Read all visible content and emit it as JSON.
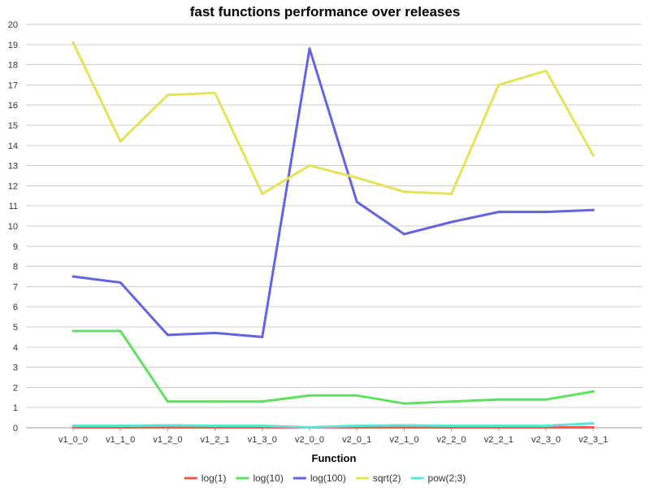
{
  "chart_data": {
    "type": "line",
    "title": "fast functions performance over releases",
    "xlabel": "Function",
    "ylabel": "",
    "ylim": [
      0,
      20
    ],
    "ytick_step": 1,
    "grid": true,
    "legend_position": "bottom",
    "categories": [
      "v1_0_0",
      "v1_1_0",
      "v1_2_0",
      "v1_2_1",
      "v1_3_0",
      "v2_0_0",
      "v2_0_1",
      "v2_1_0",
      "v2_2_0",
      "v2_2_1",
      "v2_3_0",
      "v2_3_1"
    ],
    "series": [
      {
        "name": "log(1)",
        "color": "#e8604a",
        "values": [
          0.02,
          0.02,
          0.02,
          0.02,
          0.02,
          0.02,
          0.02,
          0.02,
          0.02,
          0.02,
          0.02,
          0.02
        ]
      },
      {
        "name": "log(10)",
        "color": "#5fe05f",
        "values": [
          4.8,
          4.8,
          1.3,
          1.3,
          1.3,
          1.6,
          1.6,
          1.2,
          1.3,
          1.4,
          1.4,
          1.8
        ]
      },
      {
        "name": "log(100)",
        "color": "#6464e0",
        "values": [
          7.5,
          7.2,
          4.6,
          4.7,
          4.5,
          18.8,
          11.2,
          9.6,
          10.2,
          10.7,
          10.7,
          10.8
        ]
      },
      {
        "name": "sqrt(2)",
        "color": "#e3e35a",
        "values": [
          19.1,
          14.2,
          16.5,
          16.6,
          11.6,
          13.0,
          12.4,
          11.7,
          11.6,
          17.0,
          17.7,
          13.5
        ]
      },
      {
        "name": "pow(2;3)",
        "color": "#5fe3d9",
        "values": [
          0.1,
          0.1,
          0.12,
          0.1,
          0.1,
          0.02,
          0.1,
          0.12,
          0.1,
          0.1,
          0.1,
          0.22
        ]
      }
    ]
  }
}
